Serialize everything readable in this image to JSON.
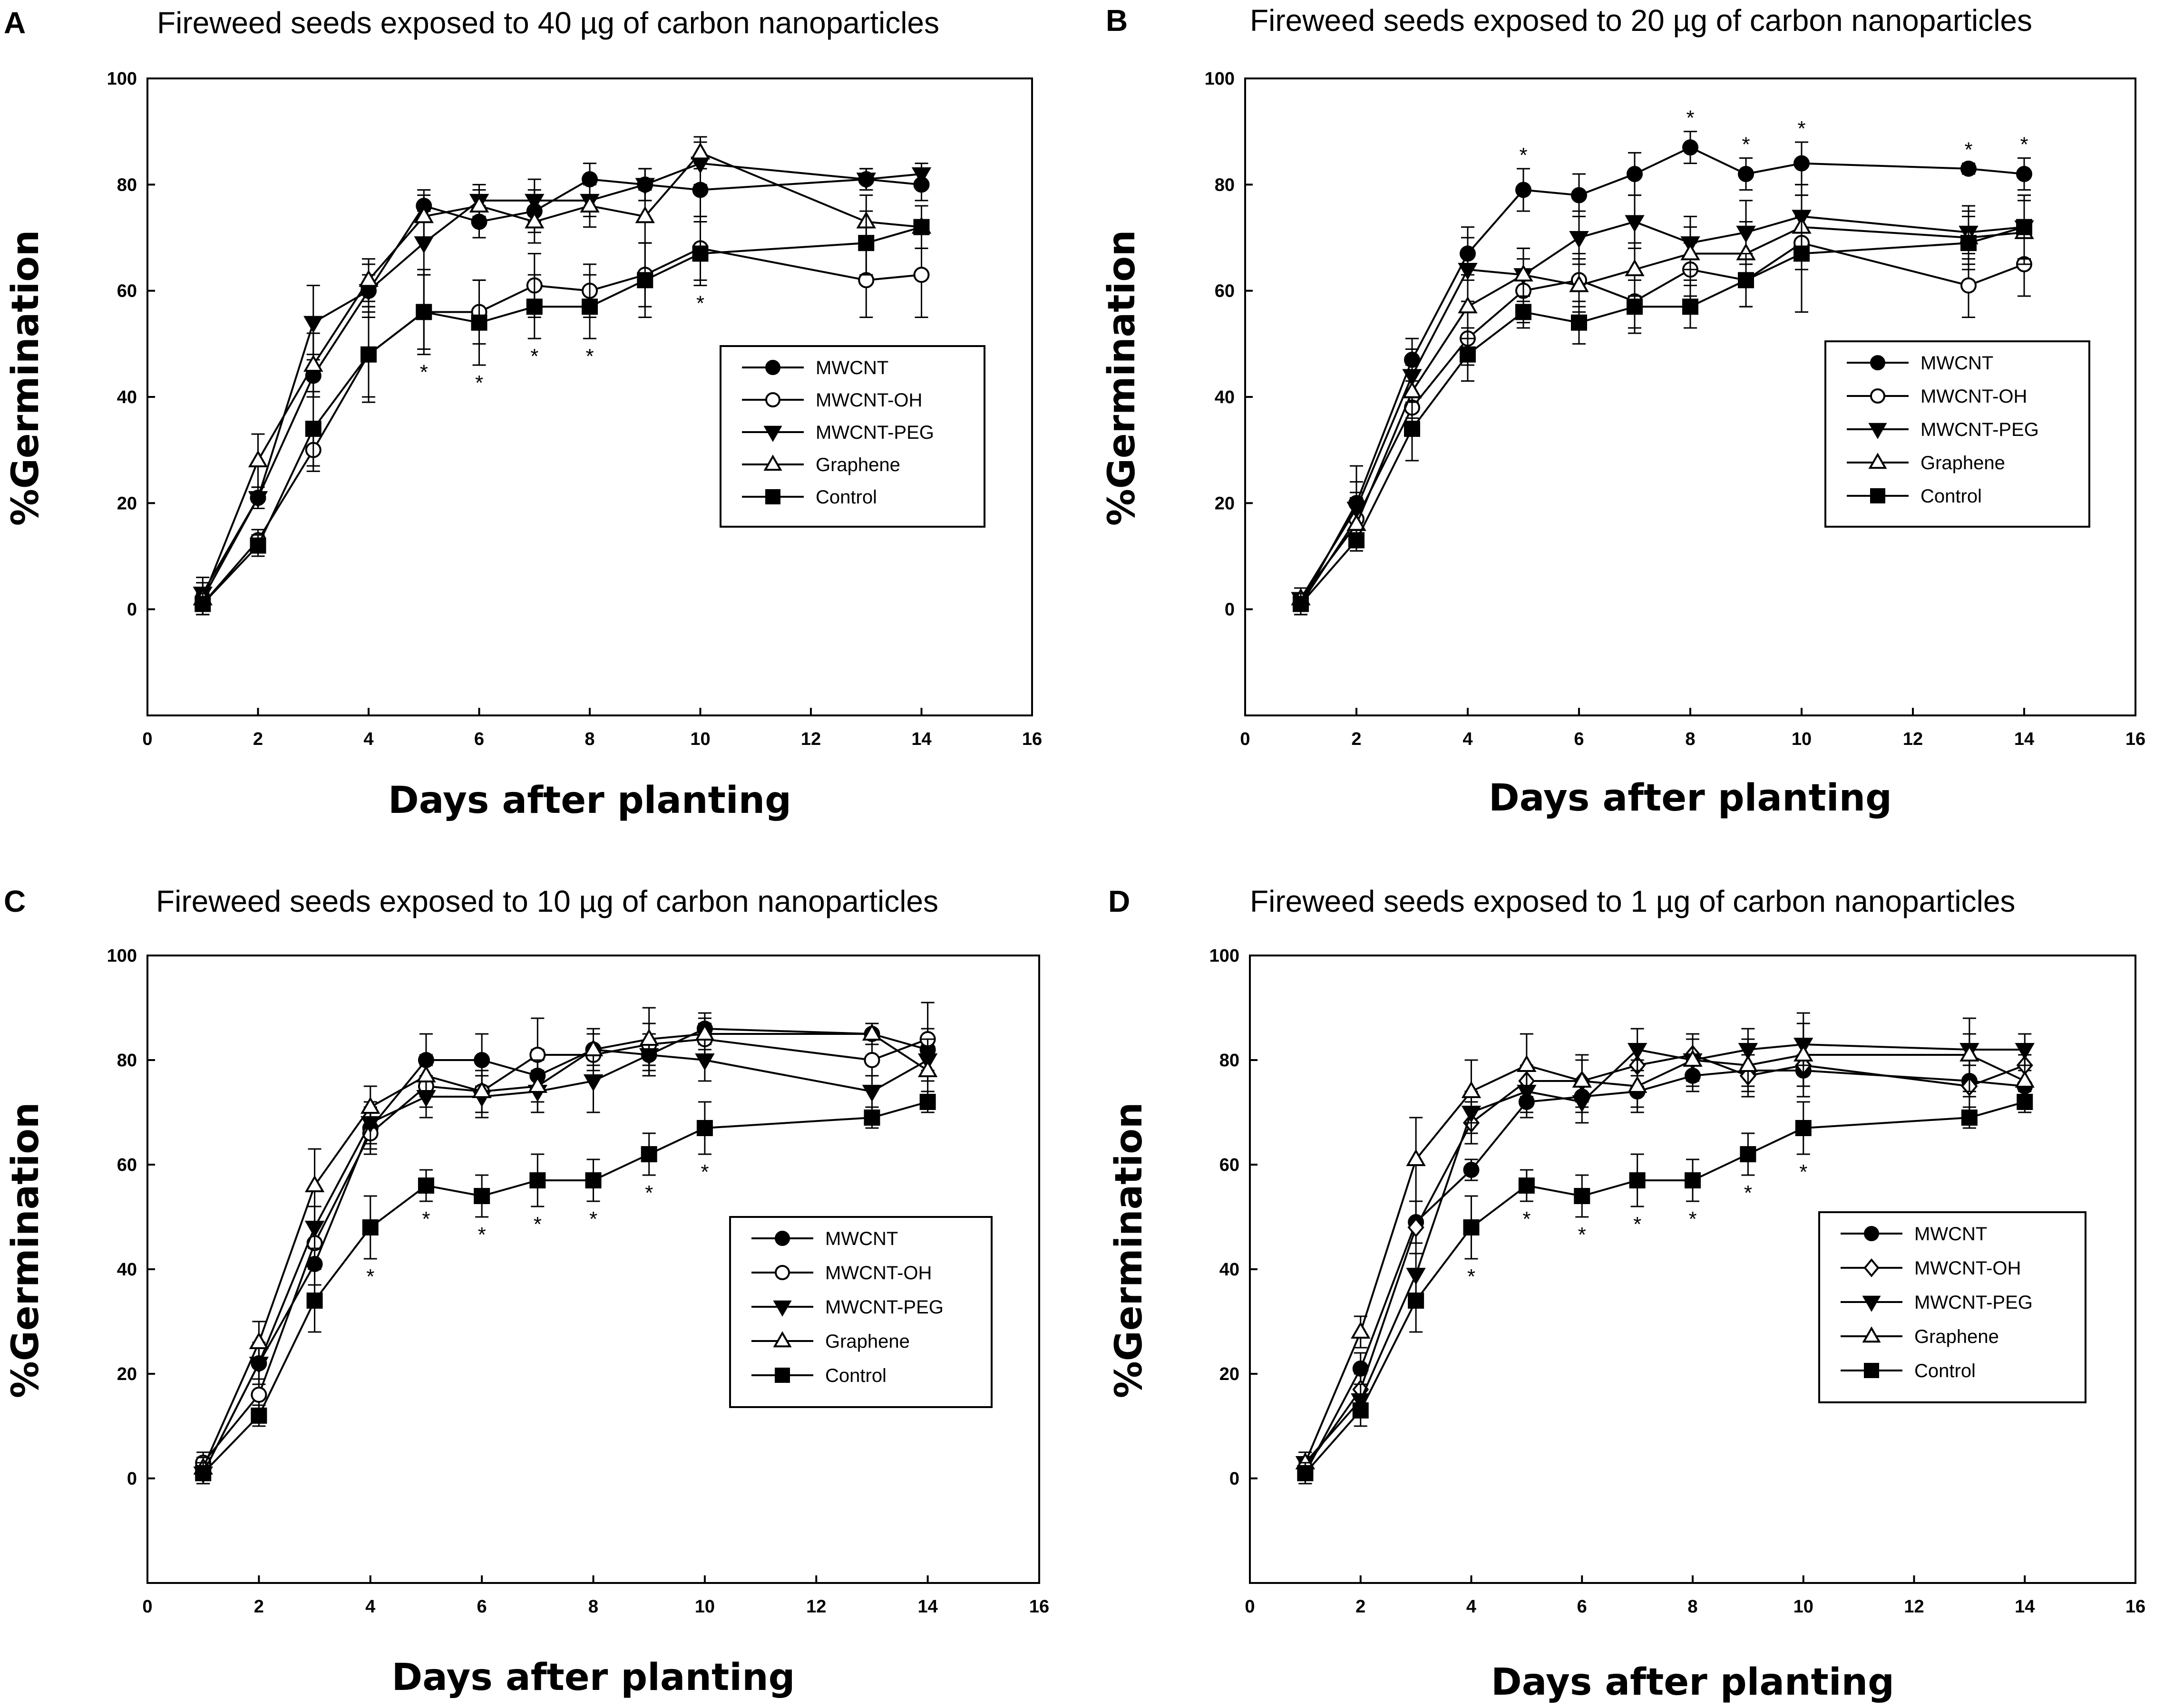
{
  "chart_data": [
    {
      "type": "line",
      "panel_label": "A",
      "title": "Fireweed seeds exposed to 40 µg of carbon nanoparticles",
      "xlabel": "Days after planting",
      "ylabel": "%Germination",
      "xlim": [
        0,
        16
      ],
      "ylim": [
        -20,
        100
      ],
      "xticks": [
        0,
        2,
        4,
        6,
        8,
        10,
        12,
        14,
        16
      ],
      "yticks": [
        0,
        20,
        40,
        60,
        80,
        100
      ],
      "legend_position": "right-middle",
      "x": [
        1,
        2,
        3,
        4,
        5,
        6,
        7,
        8,
        9,
        10,
        13,
        14
      ],
      "series": [
        {
          "name": "MWCNT",
          "marker": "circle-filled",
          "values": [
            2,
            21,
            44,
            60,
            76,
            73,
            75,
            81,
            80,
            79,
            81,
            80
          ],
          "errors": [
            2,
            2,
            4,
            3,
            3,
            3,
            4,
            3,
            3,
            5,
            2,
            3
          ]
        },
        {
          "name": "MWCNT-OH",
          "marker": "circle-open",
          "values": [
            1,
            13,
            30,
            48,
            56,
            56,
            61,
            60,
            63,
            68,
            62,
            63
          ],
          "errors": [
            2,
            2,
            4,
            8,
            7,
            6,
            6,
            5,
            6,
            6,
            7,
            8
          ]
        },
        {
          "name": "MWCNT-PEG",
          "marker": "triangle-down-filled",
          "values": [
            3,
            21,
            54,
            60,
            69,
            77,
            77,
            77,
            80,
            84,
            81,
            82
          ],
          "errors": [
            3,
            2,
            7,
            5,
            6,
            3,
            4,
            3,
            3,
            4,
            2,
            2
          ]
        },
        {
          "name": "Graphene",
          "marker": "triangle-up-open",
          "values": [
            2,
            28,
            46,
            62,
            74,
            76,
            73,
            76,
            74,
            86,
            73,
            72
          ],
          "errors": [
            3,
            5,
            6,
            4,
            4,
            3,
            4,
            4,
            5,
            3,
            5,
            4
          ]
        },
        {
          "name": "Control",
          "marker": "square-filled",
          "values": [
            1,
            12,
            34,
            48,
            56,
            54,
            57,
            57,
            62,
            67,
            69,
            72
          ],
          "errors": [
            2,
            2,
            7,
            9,
            8,
            8,
            6,
            6,
            7,
            6,
            6,
            4
          ]
        }
      ],
      "significance": [
        {
          "x": 5,
          "label": "*"
        },
        {
          "x": 6,
          "label": "*"
        },
        {
          "x": 7,
          "label": "*"
        },
        {
          "x": 8,
          "label": "*"
        },
        {
          "x": 10,
          "label": "*"
        }
      ]
    },
    {
      "type": "line",
      "panel_label": "B",
      "title": "Fireweed seeds exposed to 20 µg of carbon nanoparticles",
      "xlabel": "Days after planting",
      "ylabel": "%Germination",
      "xlim": [
        0,
        16
      ],
      "ylim": [
        -20,
        100
      ],
      "xticks": [
        0,
        2,
        4,
        6,
        8,
        10,
        12,
        14,
        16
      ],
      "yticks": [
        0,
        20,
        40,
        60,
        80,
        100
      ],
      "legend_position": "right-middle",
      "x": [
        1,
        2,
        3,
        4,
        5,
        6,
        7,
        8,
        9,
        10,
        13,
        14
      ],
      "series": [
        {
          "name": "MWCNT",
          "marker": "circle-filled",
          "values": [
            1,
            20,
            47,
            67,
            79,
            78,
            82,
            87,
            82,
            84,
            83,
            82
          ],
          "errors": [
            2,
            7,
            4,
            5,
            4,
            4,
            4,
            3,
            3,
            4,
            1,
            3
          ]
        },
        {
          "name": "MWCNT-OH",
          "marker": "circle-open",
          "values": [
            1,
            17,
            38,
            51,
            60,
            62,
            58,
            64,
            62,
            69,
            61,
            65
          ],
          "errors": [
            2,
            5,
            5,
            5,
            6,
            5,
            5,
            5,
            5,
            5,
            6,
            6
          ]
        },
        {
          "name": "MWCNT-PEG",
          "marker": "triangle-down-filled",
          "values": [
            2,
            19,
            44,
            64,
            63,
            70,
            73,
            69,
            71,
            74,
            71,
            72
          ],
          "errors": [
            2,
            5,
            5,
            6,
            5,
            5,
            5,
            5,
            6,
            6,
            5,
            6
          ]
        },
        {
          "name": "Graphene",
          "marker": "triangle-up-open",
          "values": [
            2,
            16,
            41,
            57,
            63,
            61,
            64,
            67,
            67,
            72,
            70,
            71
          ],
          "errors": [
            2,
            5,
            5,
            6,
            5,
            5,
            5,
            5,
            6,
            6,
            5,
            6
          ]
        },
        {
          "name": "Control",
          "marker": "square-filled",
          "values": [
            1,
            13,
            34,
            48,
            56,
            54,
            57,
            57,
            62,
            67,
            69,
            72
          ],
          "errors": [
            2,
            2,
            6,
            5,
            3,
            4,
            5,
            4,
            5,
            11,
            5,
            6
          ]
        }
      ],
      "significance": [
        {
          "x": 5,
          "label": "*"
        },
        {
          "x": 8,
          "label": "*"
        },
        {
          "x": 9,
          "label": "*"
        },
        {
          "x": 10,
          "label": "*"
        },
        {
          "x": 13,
          "label": "*"
        },
        {
          "x": 14,
          "label": "*"
        }
      ]
    },
    {
      "type": "line",
      "panel_label": "C",
      "title": "Fireweed seeds exposed to 10 µg of carbon nanoparticles",
      "xlabel": "Days after planting",
      "ylabel": "%Germination",
      "xlim": [
        0,
        16
      ],
      "ylim": [
        -20,
        100
      ],
      "xticks": [
        0,
        2,
        4,
        6,
        8,
        10,
        12,
        14,
        16
      ],
      "yticks": [
        0,
        20,
        40,
        60,
        80,
        100
      ],
      "legend_position": "right-middle",
      "x": [
        1,
        2,
        3,
        4,
        5,
        6,
        7,
        8,
        9,
        10,
        13,
        14
      ],
      "series": [
        {
          "name": "MWCNT",
          "marker": "circle-filled",
          "values": [
            1,
            22,
            41,
            67,
            80,
            80,
            77,
            82,
            81,
            86,
            85,
            82
          ],
          "errors": [
            2,
            4,
            4,
            4,
            5,
            5,
            5,
            3,
            4,
            3,
            2,
            4
          ]
        },
        {
          "name": "MWCNT-OH",
          "marker": "circle-open",
          "values": [
            3,
            16,
            45,
            66,
            75,
            74,
            81,
            81,
            83,
            84,
            80,
            84
          ],
          "errors": [
            2,
            3,
            4,
            4,
            4,
            4,
            7,
            4,
            4,
            3,
            3,
            7
          ]
        },
        {
          "name": "MWCNT-PEG",
          "marker": "triangle-down-filled",
          "values": [
            1,
            22,
            48,
            68,
            73,
            73,
            74,
            76,
            81,
            80,
            74,
            80
          ],
          "errors": [
            2,
            3,
            4,
            4,
            4,
            4,
            4,
            6,
            4,
            4,
            3,
            4
          ]
        },
        {
          "name": "Graphene",
          "marker": "triangle-up-open",
          "values": [
            2,
            26,
            56,
            71,
            77,
            74,
            75,
            82,
            84,
            85,
            85,
            78
          ],
          "errors": [
            2,
            4,
            7,
            4,
            4,
            4,
            5,
            4,
            6,
            3,
            2,
            4
          ]
        },
        {
          "name": "Control",
          "marker": "square-filled",
          "values": [
            1,
            12,
            34,
            48,
            56,
            54,
            57,
            57,
            62,
            67,
            69,
            72
          ],
          "errors": [
            2,
            2,
            6,
            6,
            3,
            4,
            5,
            4,
            4,
            5,
            2,
            2
          ]
        }
      ],
      "significance": [
        {
          "x": 4,
          "label": "*"
        },
        {
          "x": 5,
          "label": "*"
        },
        {
          "x": 6,
          "label": "*"
        },
        {
          "x": 7,
          "label": "*"
        },
        {
          "x": 8,
          "label": "*"
        },
        {
          "x": 9,
          "label": "*"
        },
        {
          "x": 10,
          "label": "*"
        }
      ]
    },
    {
      "type": "line",
      "panel_label": "D",
      "title": "Fireweed seeds exposed to 1 µg of carbon nanoparticles",
      "xlabel": "Days after planting",
      "ylabel": "%Germination",
      "xlim": [
        0,
        16
      ],
      "ylim": [
        -20,
        100
      ],
      "xticks": [
        0,
        2,
        4,
        6,
        8,
        10,
        12,
        14,
        16
      ],
      "yticks": [
        0,
        20,
        40,
        60,
        80,
        100
      ],
      "legend_position": "right-middle",
      "x": [
        1,
        2,
        3,
        4,
        5,
        6,
        7,
        8,
        9,
        10,
        13,
        14
      ],
      "series": [
        {
          "name": "MWCNT",
          "marker": "circle-filled",
          "values": [
            1,
            21,
            49,
            59,
            72,
            73,
            74,
            77,
            78,
            78,
            76,
            75
          ],
          "errors": [
            2,
            3,
            4,
            2,
            3,
            3,
            3,
            3,
            3,
            3,
            3,
            3
          ]
        },
        {
          "name": "MWCNT-OH",
          "marker": "diamond-open",
          "values": [
            2,
            17,
            48,
            68,
            76,
            76,
            79,
            81,
            77,
            79,
            75,
            79
          ],
          "errors": [
            2,
            3,
            5,
            4,
            3,
            4,
            4,
            4,
            4,
            4,
            5,
            4
          ]
        },
        {
          "name": "MWCNT-PEG",
          "marker": "triangle-down-filled",
          "values": [
            3,
            15,
            39,
            70,
            74,
            72,
            82,
            80,
            82,
            83,
            82,
            82
          ],
          "errors": [
            2,
            3,
            4,
            4,
            4,
            4,
            4,
            4,
            4,
            4,
            3,
            3
          ]
        },
        {
          "name": "Graphene",
          "marker": "triangle-up-open",
          "values": [
            3,
            28,
            61,
            74,
            79,
            76,
            75,
            80,
            79,
            81,
            81,
            76
          ],
          "errors": [
            2,
            3,
            8,
            6,
            6,
            5,
            5,
            5,
            5,
            8,
            7,
            5
          ]
        },
        {
          "name": "Control",
          "marker": "square-filled",
          "values": [
            1,
            13,
            34,
            48,
            56,
            54,
            57,
            57,
            62,
            67,
            69,
            72
          ],
          "errors": [
            2,
            3,
            6,
            6,
            3,
            4,
            5,
            4,
            4,
            5,
            2,
            2
          ]
        }
      ],
      "significance": [
        {
          "x": 4,
          "label": "*"
        },
        {
          "x": 5,
          "label": "*"
        },
        {
          "x": 6,
          "label": "*"
        },
        {
          "x": 7,
          "label": "*"
        },
        {
          "x": 8,
          "label": "*"
        },
        {
          "x": 9,
          "label": "*"
        },
        {
          "x": 10,
          "label": "*"
        }
      ]
    }
  ]
}
